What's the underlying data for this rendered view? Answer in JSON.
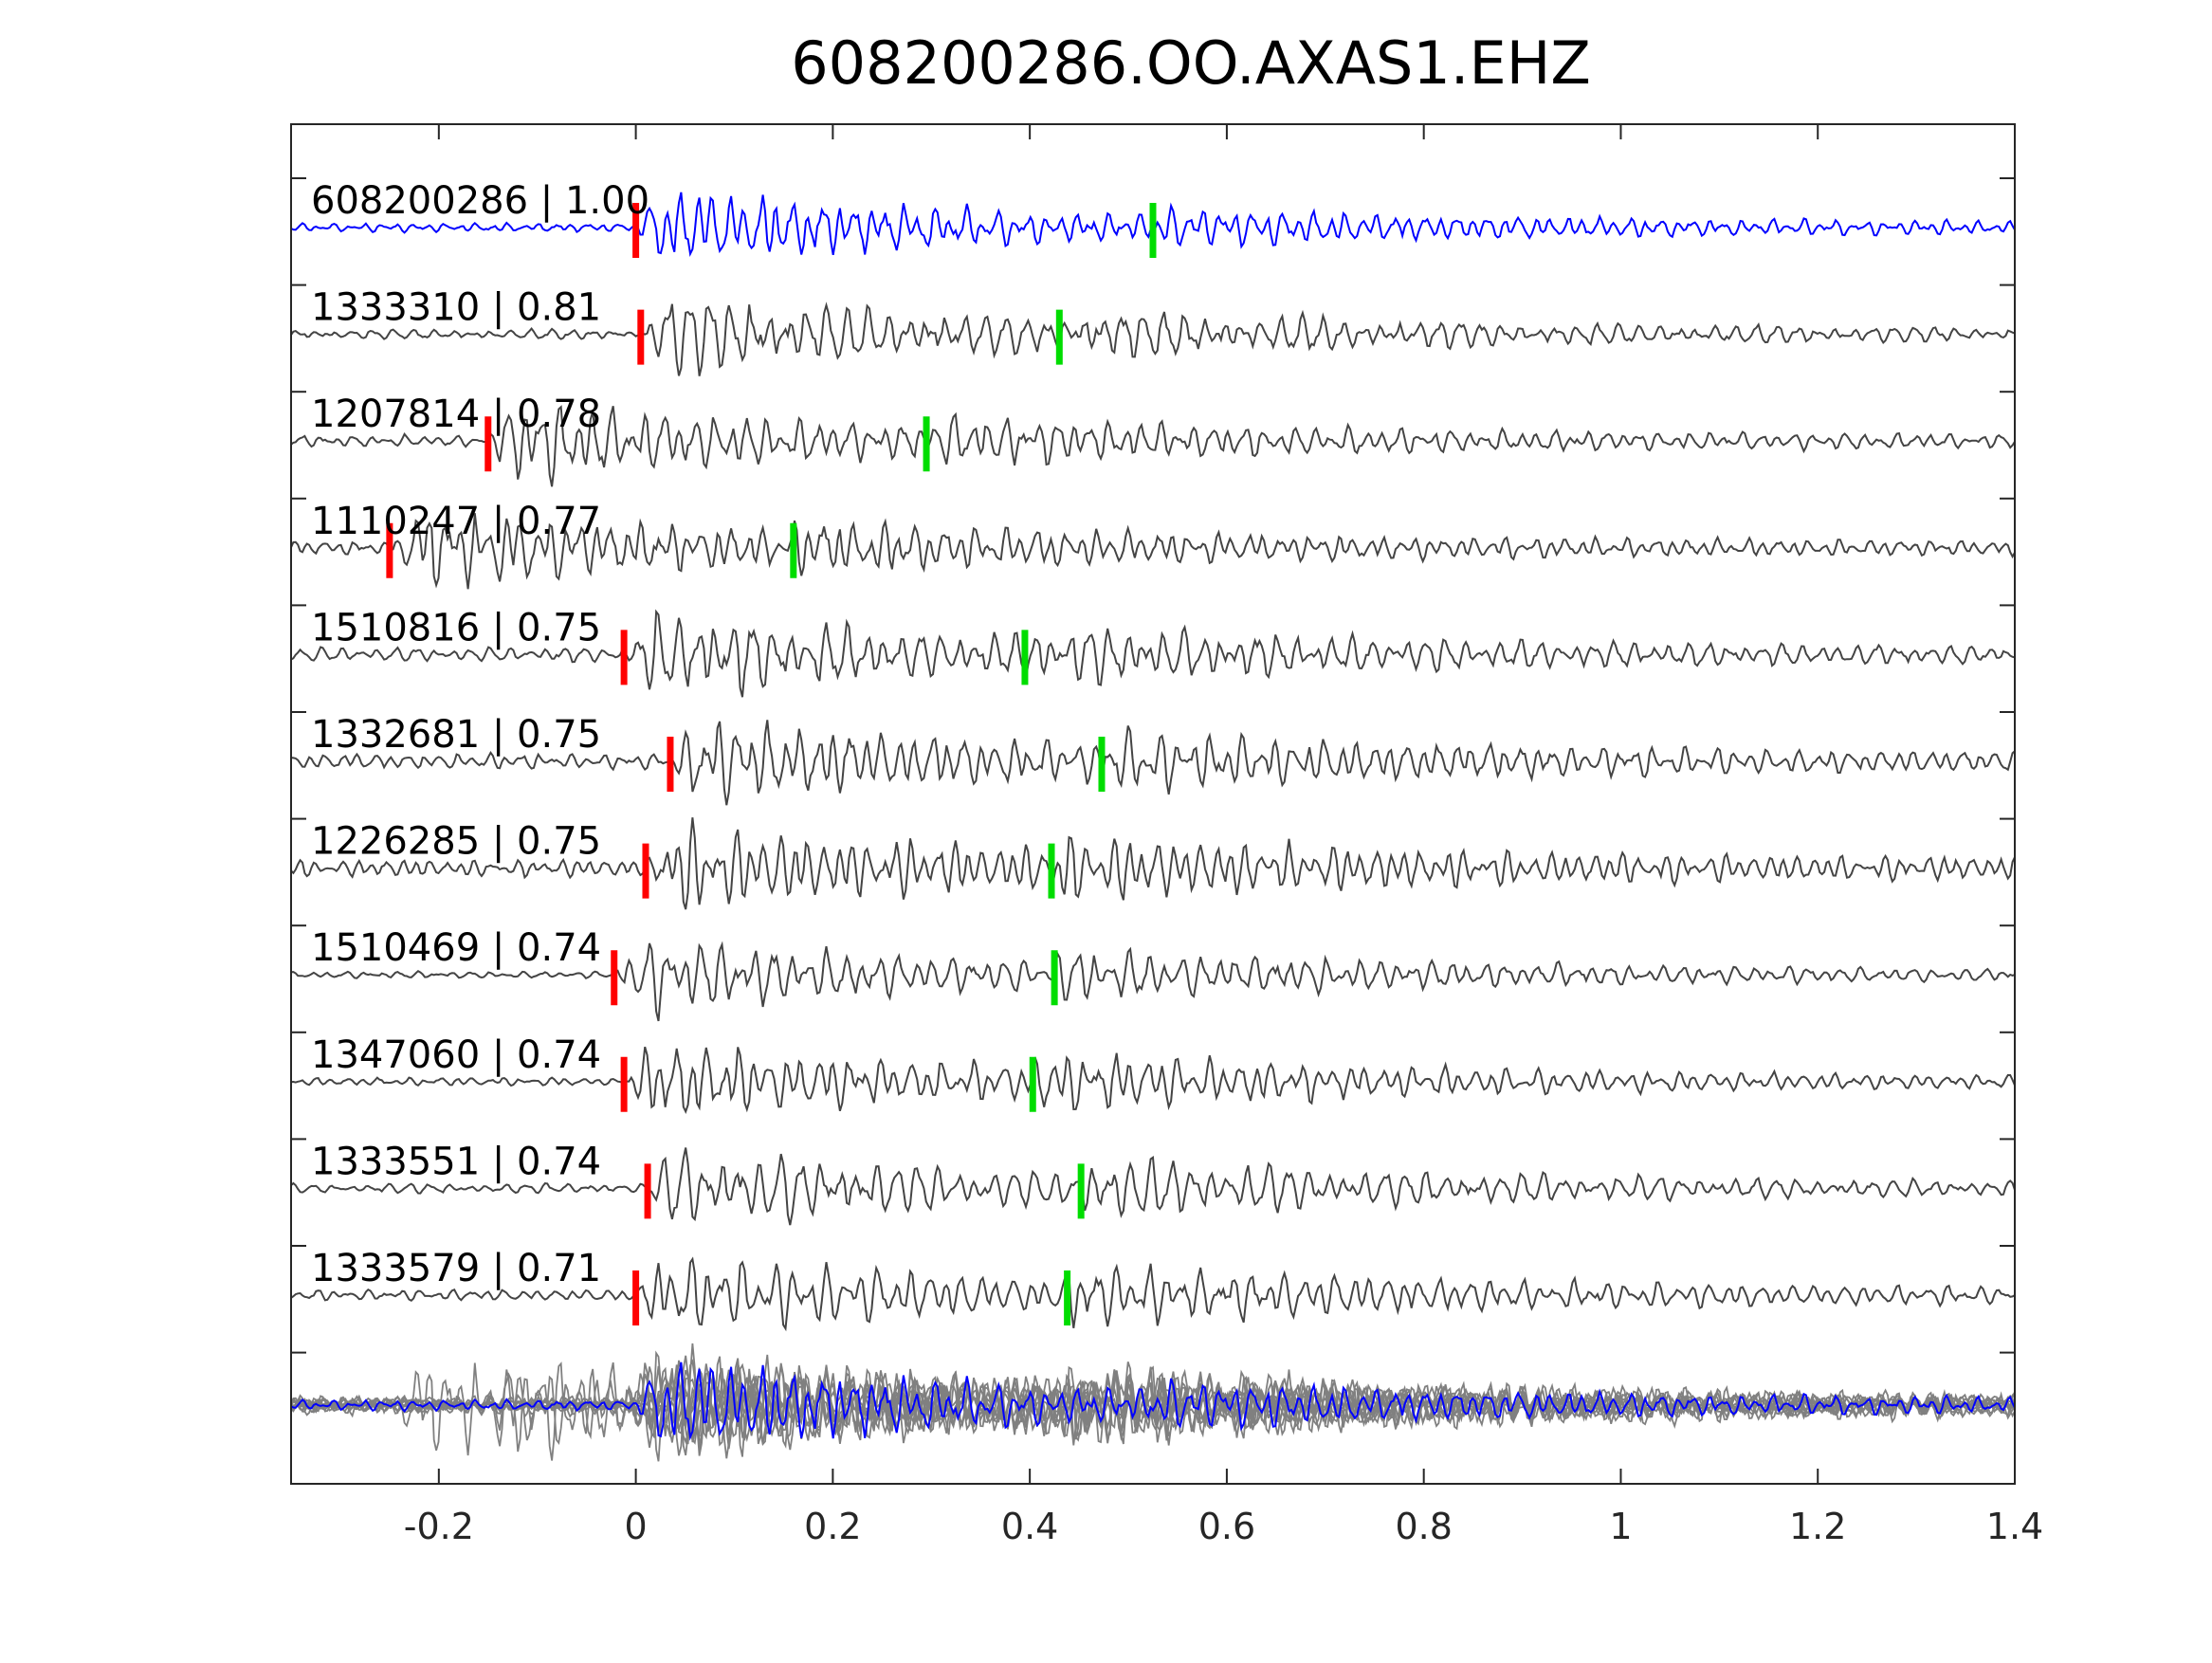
{
  "chart_data": {
    "type": "line",
    "title": "608200286.OO.AXAS1.EHZ",
    "xlabel": "",
    "ylabel": "",
    "xlim": [
      -0.35,
      1.4
    ],
    "xticks": [
      {
        "value": -0.2,
        "label": "-0.2"
      },
      {
        "value": 0,
        "label": "0"
      },
      {
        "value": 0.2,
        "label": "0.2"
      },
      {
        "value": 0.4,
        "label": "0.4"
      },
      {
        "value": 0.6,
        "label": "0.6"
      },
      {
        "value": 0.8,
        "label": "0.8"
      },
      {
        "value": 1,
        "label": "1"
      },
      {
        "value": 1.2,
        "label": "1.2"
      },
      {
        "value": 1.4,
        "label": "1.4"
      }
    ],
    "grid": false,
    "colors": {
      "template": "#0000ff",
      "match": "#444444",
      "overlay": "#808080",
      "p_pick": "#ff0000",
      "s_pick": "#00dd00"
    },
    "traces": [
      {
        "label": "608200286 | 1.00",
        "p_pick": 0.0,
        "s_pick": 0.525,
        "highlight": true
      },
      {
        "label": "1333310 | 0.81",
        "p_pick": 0.005,
        "s_pick": 0.43
      },
      {
        "label": "1207814 | 0.78",
        "p_pick": -0.15,
        "s_pick": 0.295
      },
      {
        "label": "1110247 | 0.77",
        "p_pick": -0.25,
        "s_pick": 0.16
      },
      {
        "label": "1510816 | 0.75",
        "p_pick": -0.012,
        "s_pick": 0.395
      },
      {
        "label": "1332681 | 0.75",
        "p_pick": 0.035,
        "s_pick": 0.473
      },
      {
        "label": "1226285 | 0.75",
        "p_pick": 0.01,
        "s_pick": 0.422
      },
      {
        "label": "1510469 | 0.74",
        "p_pick": -0.022,
        "s_pick": 0.425
      },
      {
        "label": "1347060 | 0.74",
        "p_pick": -0.012,
        "s_pick": 0.403
      },
      {
        "label": "1333551 | 0.74",
        "p_pick": 0.012,
        "s_pick": 0.452
      },
      {
        "label": "1333579 | 0.71",
        "p_pick": 0.0,
        "s_pick": 0.438
      }
    ],
    "stack": {
      "present": true
    }
  }
}
